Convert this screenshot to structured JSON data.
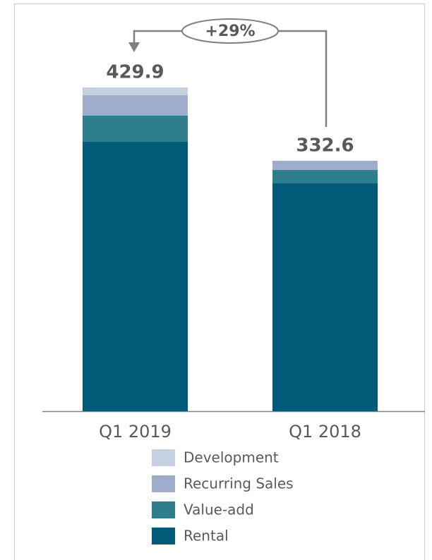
{
  "chart_data": {
    "type": "bar",
    "stacked": true,
    "categories": [
      "Q1 2019",
      "Q1 2018"
    ],
    "series": [
      {
        "name": "Rental",
        "color": "#005a78",
        "values": [
          357.8,
          302.5
        ]
      },
      {
        "name": "Value-add",
        "color": "#2e7f8e",
        "values": [
          34.7,
          17.8
        ]
      },
      {
        "name": "Recurring Sales",
        "color": "#9eadcb",
        "values": [
          27.2,
          12.3
        ]
      },
      {
        "name": "Development",
        "color": "#c5d0e1",
        "values": [
          10.2,
          0
        ]
      }
    ],
    "totals": [
      429.9,
      332.6
    ],
    "annotation": "+29%"
  }
}
